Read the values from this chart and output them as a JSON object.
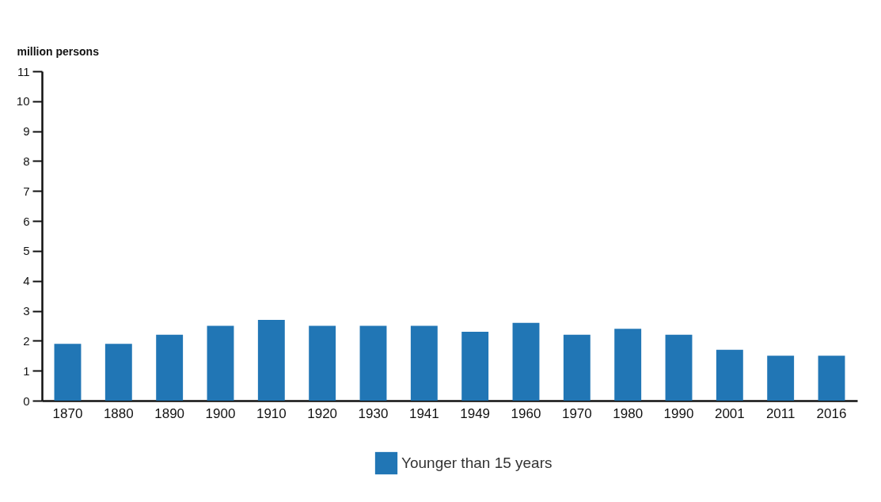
{
  "chart_data": {
    "type": "bar",
    "ylabel": "million persons",
    "categories": [
      "1870",
      "1880",
      "1890",
      "1900",
      "1910",
      "1920",
      "1930",
      "1941",
      "1949",
      "1960",
      "1970",
      "1980",
      "1990",
      "2001",
      "2011",
      "2016"
    ],
    "series": [
      {
        "name": "Younger than 15 years",
        "color": "#2176b5",
        "values": [
          1.9,
          1.9,
          2.2,
          2.5,
          2.7,
          2.5,
          2.5,
          2.5,
          2.3,
          2.6,
          2.2,
          2.4,
          2.2,
          1.7,
          1.5,
          1.5
        ]
      }
    ],
    "ylim": [
      0,
      11
    ],
    "yticks": [
      0,
      1,
      2,
      3,
      4,
      5,
      6,
      7,
      8,
      9,
      10,
      11
    ],
    "grid": false,
    "legend": "bottom"
  }
}
